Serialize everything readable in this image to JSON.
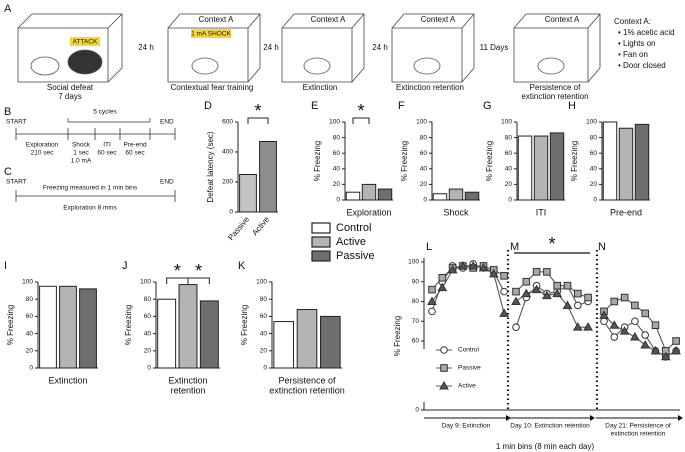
{
  "schematic": {
    "panel": "A",
    "stages": [
      {
        "tag": "ATTACK",
        "caption": [
          "Social defeat",
          "7 days"
        ]
      },
      {
        "title": "Context A",
        "tag": "1 mA SHOCK",
        "caption": [
          "Contextual fear training"
        ]
      },
      {
        "title": "Context A",
        "caption": [
          "Extinction"
        ]
      },
      {
        "title": "Context A",
        "caption": [
          "Extinction retention"
        ]
      },
      {
        "title": "Context A",
        "caption": [
          "Persistence of",
          "extinction retention"
        ]
      }
    ],
    "intervals": [
      "24 h",
      "24 h",
      "24 h",
      "11 Days"
    ],
    "context_note": {
      "title": "Context A:",
      "items": [
        "• 1% acetic acid",
        "• Lights on",
        "• Fan on",
        "• Door closed"
      ]
    }
  },
  "protocol_b": {
    "panel": "B",
    "start": "START",
    "end": "END",
    "cycles": "5 cycles",
    "steps": [
      [
        "Exploration",
        "210 sec"
      ],
      [
        "Shock",
        "1 sec",
        "1.0 mA"
      ],
      [
        "ITI",
        "60 sec"
      ],
      [
        "Pre-end",
        "60 sec"
      ]
    ]
  },
  "protocol_c": {
    "panel": "C",
    "start": "START",
    "end": "END",
    "note": "Freezing measured in 1 min bins",
    "step": "Exploration 8 mins"
  },
  "legend": [
    {
      "name": "Control",
      "color": "#ffffff"
    },
    {
      "name": "Active",
      "color": "#b4b4b4"
    },
    {
      "name": "Passive",
      "color": "#6e6e6e"
    }
  ],
  "chart_data": [
    {
      "type": "bar",
      "panel": "D",
      "ylabel": "Defeat latency (sec)",
      "categories": [
        "Passive",
        "Active"
      ],
      "values": [
        250,
        470
      ],
      "colors": [
        "#c4c4c4",
        "#8e8e8e"
      ],
      "ylim": [
        0,
        600
      ],
      "yticks": [
        0,
        200,
        400,
        600
      ],
      "significance": [
        {
          "label": "*",
          "between": [
            0,
            1
          ]
        }
      ]
    },
    {
      "type": "bar",
      "panel": "E",
      "ylabel": "% Freezing",
      "xlabel": [
        "Exploration"
      ],
      "values": [
        10,
        20,
        14
      ],
      "colors": [
        "#ffffff",
        "#b4b4b4",
        "#6e6e6e"
      ],
      "ylim": [
        0,
        100
      ],
      "yticks": [
        0,
        20,
        40,
        60,
        80,
        100
      ],
      "significance": [
        {
          "label": "*",
          "between": [
            0,
            1
          ]
        }
      ]
    },
    {
      "type": "bar",
      "panel": "F",
      "ylabel": "% Freezing",
      "xlabel": [
        "Shock"
      ],
      "values": [
        8,
        14,
        10
      ],
      "colors": [
        "#ffffff",
        "#b4b4b4",
        "#6e6e6e"
      ],
      "ylim": [
        0,
        100
      ],
      "yticks": [
        0,
        20,
        40,
        60,
        80,
        100
      ]
    },
    {
      "type": "bar",
      "panel": "G",
      "ylabel": "% Freezing",
      "xlabel": [
        "ITI"
      ],
      "values": [
        82,
        82,
        86
      ],
      "colors": [
        "#ffffff",
        "#b4b4b4",
        "#6e6e6e"
      ],
      "ylim": [
        0,
        100
      ],
      "yticks": [
        0,
        20,
        40,
        60,
        80,
        100
      ]
    },
    {
      "type": "bar",
      "panel": "H",
      "ylabel": "% Freezing",
      "xlabel": [
        "Pre-end"
      ],
      "values": [
        100,
        92,
        97
      ],
      "colors": [
        "#ffffff",
        "#b4b4b4",
        "#6e6e6e"
      ],
      "ylim": [
        0,
        100
      ],
      "yticks": [
        0,
        20,
        40,
        60,
        80,
        100
      ]
    },
    {
      "type": "bar",
      "panel": "I",
      "ylabel": "% Freezing",
      "xlabel": [
        "Extinction"
      ],
      "values": [
        95,
        95,
        92
      ],
      "colors": [
        "#ffffff",
        "#b4b4b4",
        "#6e6e6e"
      ],
      "ylim": [
        0,
        100
      ],
      "yticks": [
        0,
        20,
        40,
        60,
        80,
        100
      ]
    },
    {
      "type": "bar",
      "panel": "J",
      "ylabel": "% Freezing",
      "xlabel": [
        "Extinction",
        "retention"
      ],
      "values": [
        80,
        97,
        78
      ],
      "colors": [
        "#ffffff",
        "#b4b4b4",
        "#6e6e6e"
      ],
      "ylim": [
        0,
        100
      ],
      "yticks": [
        0,
        20,
        40,
        60,
        80,
        100
      ],
      "significance": [
        {
          "label": "*",
          "between": [
            0,
            1
          ]
        },
        {
          "label": "*",
          "between": [
            1,
            2
          ]
        }
      ]
    },
    {
      "type": "bar",
      "panel": "K",
      "ylabel": "% Freezing",
      "xlabel": [
        "Persistence of",
        "extinction retention"
      ],
      "values": [
        54,
        68,
        60
      ],
      "colors": [
        "#ffffff",
        "#b4b4b4",
        "#6e6e6e"
      ],
      "ylim": [
        0,
        100
      ],
      "yticks": [
        0,
        20,
        40,
        60,
        80,
        100
      ]
    },
    {
      "type": "line",
      "ylabel": "% Freezing",
      "xlabel": "1 min bins (8 min each day)",
      "segments": [
        {
          "panel": "L",
          "label": [
            "Day 9: Extinction"
          ]
        },
        {
          "panel": "M",
          "label": [
            "Day 10: Extinction retention"
          ]
        },
        {
          "panel": "N",
          "label": [
            "Day 21: Persistence of",
            "extinction retention"
          ]
        }
      ],
      "series": [
        {
          "name": "Control",
          "marker": "circle",
          "color": "#ffffff",
          "values": [
            75,
            90,
            98,
            97,
            99,
            97,
            95,
            85,
            null,
            67,
            82,
            88,
            84,
            85,
            88,
            78,
            80,
            null,
            70,
            62,
            67,
            70,
            63,
            55,
            52,
            55
          ]
        },
        {
          "name": "Passive",
          "marker": "square",
          "color": "#a8a8a8",
          "values": [
            86,
            92,
            97,
            98,
            97,
            98,
            96,
            93,
            null,
            85,
            90,
            95,
            95,
            88,
            88,
            84,
            82,
            null,
            75,
            80,
            82,
            78,
            74,
            68,
            55,
            60
          ]
        },
        {
          "name": "Active",
          "marker": "triangle",
          "color": "#555555",
          "values": [
            80,
            87,
            96,
            98,
            98,
            97,
            94,
            74,
            null,
            80,
            84,
            86,
            83,
            84,
            78,
            67,
            67,
            null,
            73,
            68,
            65,
            62,
            58,
            55,
            52,
            55
          ]
        }
      ],
      "ylim": [
        0,
        100
      ],
      "y_break": [
        0,
        60
      ],
      "yticks": [
        0,
        60,
        70,
        80,
        90,
        100
      ],
      "significance": [
        {
          "label": "*",
          "segment": 1
        }
      ]
    }
  ]
}
